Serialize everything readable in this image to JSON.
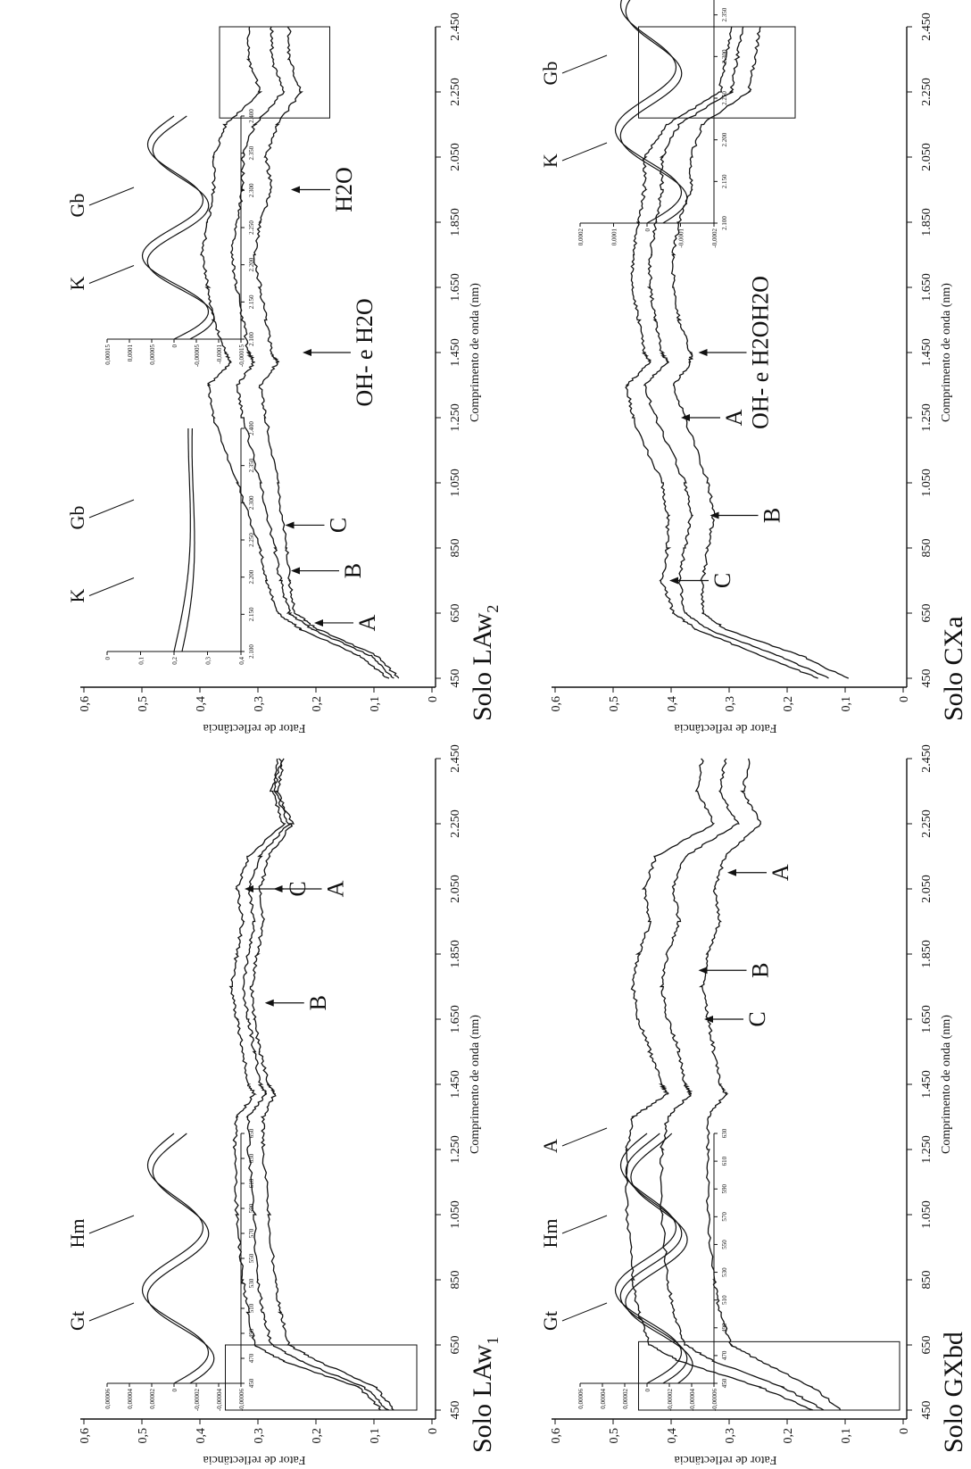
{
  "panels": [
    {
      "id": "law1",
      "title": "Solo LAw",
      "title_sub": "1",
      "ylabel": "Fator de reflectância",
      "xlabel": "Comprimento de onda (nm)",
      "x_ticks": [
        "450",
        "650",
        "850",
        "1.050",
        "1.250",
        "1.450",
        "1.650",
        "1.850",
        "2.050",
        "2.250",
        "2.450"
      ],
      "y_ticks": [
        "0",
        "0,1",
        "0,2",
        "0,3",
        "0,4",
        "0,5",
        "0,6"
      ],
      "box": {
        "x0": 450,
        "x1": 650,
        "y0": 0.02,
        "y1": 0.35
      },
      "annotations": [
        {
          "label": "C",
          "x": 2050,
          "y": 0.32
        },
        {
          "label": "A",
          "x": 2050,
          "y": 0.27
        },
        {
          "label": "B",
          "x": 1700,
          "y": 0.285
        }
      ],
      "inset": {
        "x_ticks": [
          "450",
          "470",
          "490",
          "510",
          "530",
          "550",
          "570",
          "590",
          "610",
          "630",
          "650"
        ],
        "y_ticks": [
          "0,00006",
          "0,00004",
          "0,00002",
          "0",
          "-0,00002",
          "-0,00004",
          "-0,00006"
        ],
        "ylim": [
          -6e-05,
          6e-05
        ],
        "labels": [
          "Gt",
          "Hm"
        ]
      }
    },
    {
      "id": "law2",
      "title": "Solo LAw",
      "title_sub": "2",
      "ylabel": "Fator de reflectância",
      "xlabel": "Comprimento de onda (nm)",
      "x_ticks": [
        "450",
        "650",
        "850",
        "1.050",
        "1.250",
        "1.450",
        "1.650",
        "1.850",
        "2.050",
        "2.250",
        "2.450"
      ],
      "y_ticks": [
        "0",
        "0,1",
        "0,2",
        "0,3",
        "0,4",
        "0,5",
        "0,6"
      ],
      "box": {
        "x0": 2170,
        "x1": 2450,
        "y0": 0.17,
        "y1": 0.36
      },
      "annotations": [
        {
          "label": "A",
          "x": 620,
          "y": 0.2
        },
        {
          "label": "B",
          "x": 780,
          "y": 0.24
        },
        {
          "label": "C",
          "x": 920,
          "y": 0.25
        },
        {
          "label": "OH- e H2O",
          "x": 1450,
          "y": 0.22
        },
        {
          "label": "H2O",
          "x": 1950,
          "y": 0.24
        }
      ],
      "inset1": {
        "x_ticks": [
          "2.100",
          "2.150",
          "2.200",
          "2.250",
          "2.300",
          "2.350",
          "2.400"
        ],
        "y_ticks": [
          "0",
          "0,1",
          "0,2",
          "0,3",
          "0,4"
        ],
        "labels": [
          "K",
          "Gb"
        ]
      },
      "inset2": {
        "x_ticks": [
          "2.100",
          "2.150",
          "2.200",
          "2.250",
          "2.300",
          "2.350",
          "2.400"
        ],
        "y_ticks": [
          "0,00015",
          "0,0001",
          "0,00005",
          "0",
          "-0,00005",
          "-0,0001",
          "-0,00015"
        ],
        "labels": [
          "K",
          "Gb"
        ]
      }
    },
    {
      "id": "gxbd",
      "title": "Solo GXbd",
      "ylabel": "Fator de reflectância",
      "xlabel": "Comprimento de onda (nm)",
      "x_ticks": [
        "450",
        "650",
        "850",
        "1.050",
        "1.250",
        "1.450",
        "1.650",
        "1.850",
        "2.050",
        "2.250",
        "2.450"
      ],
      "y_ticks": [
        "0",
        "0,1",
        "0,2",
        "0,3",
        "0,4",
        "0,5",
        "0,6"
      ],
      "box": {
        "x0": 450,
        "x1": 660,
        "y0": 0.0,
        "y1": 0.45
      },
      "annotations": [
        {
          "label": "C",
          "x": 1650,
          "y": 0.34
        },
        {
          "label": "B",
          "x": 1800,
          "y": 0.35
        },
        {
          "label": "A",
          "x": 2100,
          "y": 0.3
        }
      ],
      "inset": {
        "x_ticks": [
          "450",
          "470",
          "490",
          "510",
          "530",
          "550",
          "570",
          "590",
          "610",
          "630"
        ],
        "y_ticks": [
          "0,00006",
          "0,00004",
          "0,00002",
          "0",
          "-0,00002",
          "-0,00004",
          "-0,00006"
        ],
        "labels": [
          "Gt",
          "Hm",
          "A"
        ]
      }
    },
    {
      "id": "cxa",
      "title": "Solo CXa",
      "ylabel": "Fator de reflectância",
      "xlabel": "Comprimento de onda (nm)",
      "x_ticks": [
        "450",
        "650",
        "850",
        "1.050",
        "1.250",
        "1.450",
        "1.650",
        "1.850",
        "2.050",
        "2.250",
        "2.450"
      ],
      "y_ticks": [
        "0",
        "0,1",
        "0,2",
        "0,3",
        "0,4",
        "0,5",
        "0,6"
      ],
      "box": {
        "x0": 2170,
        "x1": 2450,
        "y0": 0.18,
        "y1": 0.45
      },
      "annotations": [
        {
          "label": "C",
          "x": 750,
          "y": 0.4
        },
        {
          "label": "B",
          "x": 950,
          "y": 0.33
        },
        {
          "label": "A",
          "x": 1250,
          "y": 0.38
        },
        {
          "label": "OH- e H2OH2O",
          "x": 1450,
          "y": 0.35
        }
      ],
      "inset": {
        "x_ticks": [
          "2.100",
          "2.150",
          "2.200",
          "2.250",
          "2.300",
          "2.350",
          "2.400"
        ],
        "y_ticks": [
          "0,0002",
          "0,0001",
          "0",
          "-0,0001",
          "-0,0002"
        ],
        "labels": [
          "K",
          "Gb"
        ]
      }
    }
  ],
  "chart_data": [
    {
      "type": "line",
      "title": "Solo LAw1",
      "xlabel": "Comprimento de onda (nm)",
      "ylabel": "Fator de reflectância",
      "xlim": [
        450,
        2450
      ],
      "ylim": [
        0,
        0.6
      ],
      "x": [
        450,
        520,
        600,
        650,
        750,
        850,
        1050,
        1250,
        1350,
        1420,
        1450,
        1550,
        1650,
        1750,
        1850,
        1950,
        2050,
        2150,
        2250,
        2350,
        2450
      ],
      "series": [
        {
          "values": [
            0.08,
            0.12,
            0.25,
            0.3,
            0.31,
            0.32,
            0.33,
            0.335,
            0.33,
            0.3,
            0.31,
            0.32,
            0.33,
            0.34,
            0.33,
            0.32,
            0.33,
            0.31,
            0.25,
            0.27,
            0.26
          ]
        },
        {
          "values": [
            0.07,
            0.11,
            0.22,
            0.27,
            0.285,
            0.295,
            0.3,
            0.31,
            0.31,
            0.28,
            0.29,
            0.3,
            0.31,
            0.32,
            0.31,
            0.3,
            0.31,
            0.29,
            0.24,
            0.265,
            0.255
          ]
        },
        {
          "values": [
            0.06,
            0.09,
            0.19,
            0.24,
            0.255,
            0.265,
            0.275,
            0.285,
            0.285,
            0.265,
            0.275,
            0.29,
            0.3,
            0.305,
            0.295,
            0.285,
            0.29,
            0.275,
            0.235,
            0.26,
            0.25
          ]
        }
      ]
    },
    {
      "type": "line",
      "title": "Solo LAw2",
      "xlabel": "Comprimento de onda (nm)",
      "ylabel": "Fator de reflectância",
      "xlim": [
        450,
        2450
      ],
      "ylim": [
        0,
        0.6
      ],
      "x": [
        450,
        520,
        600,
        650,
        750,
        850,
        1050,
        1250,
        1350,
        1420,
        1450,
        1550,
        1650,
        1750,
        1850,
        1950,
        2050,
        2150,
        2250,
        2350,
        2450
      ],
      "series": [
        {
          "values": [
            0.07,
            0.12,
            0.22,
            0.26,
            0.28,
            0.29,
            0.33,
            0.37,
            0.38,
            0.34,
            0.35,
            0.37,
            0.38,
            0.39,
            0.38,
            0.37,
            0.37,
            0.35,
            0.29,
            0.31,
            0.31
          ]
        },
        {
          "values": [
            0.06,
            0.1,
            0.2,
            0.24,
            0.255,
            0.265,
            0.29,
            0.32,
            0.33,
            0.3,
            0.31,
            0.32,
            0.33,
            0.34,
            0.33,
            0.32,
            0.32,
            0.3,
            0.25,
            0.27,
            0.27
          ]
        },
        {
          "values": [
            0.05,
            0.09,
            0.19,
            0.23,
            0.24,
            0.245,
            0.26,
            0.28,
            0.29,
            0.26,
            0.27,
            0.28,
            0.29,
            0.3,
            0.29,
            0.27,
            0.28,
            0.26,
            0.22,
            0.24,
            0.24
          ]
        }
      ]
    },
    {
      "type": "line",
      "title": "Solo GXbd",
      "xlabel": "Comprimento de onda (nm)",
      "ylabel": "Fator de reflectância",
      "xlim": [
        450,
        2450
      ],
      "ylim": [
        0,
        0.6
      ],
      "x": [
        450,
        520,
        600,
        650,
        750,
        850,
        1050,
        1250,
        1350,
        1420,
        1450,
        1550,
        1650,
        1750,
        1850,
        1950,
        2050,
        2150,
        2250,
        2350,
        2450
      ],
      "series": [
        {
          "values": [
            0.15,
            0.24,
            0.38,
            0.43,
            0.45,
            0.46,
            0.47,
            0.47,
            0.46,
            0.4,
            0.41,
            0.43,
            0.45,
            0.46,
            0.45,
            0.43,
            0.44,
            0.42,
            0.32,
            0.35,
            0.34
          ]
        },
        {
          "values": [
            0.13,
            0.2,
            0.32,
            0.37,
            0.39,
            0.4,
            0.41,
            0.41,
            0.4,
            0.36,
            0.37,
            0.38,
            0.4,
            0.41,
            0.4,
            0.38,
            0.39,
            0.37,
            0.28,
            0.31,
            0.3
          ]
        },
        {
          "values": [
            0.1,
            0.15,
            0.24,
            0.29,
            0.31,
            0.32,
            0.33,
            0.33,
            0.33,
            0.3,
            0.31,
            0.32,
            0.33,
            0.34,
            0.33,
            0.31,
            0.32,
            0.3,
            0.24,
            0.27,
            0.26
          ]
        }
      ]
    },
    {
      "type": "line",
      "title": "Solo CXa",
      "xlabel": "Comprimento de onda (nm)",
      "ylabel": "Fator de reflectância",
      "xlim": [
        450,
        2450
      ],
      "ylim": [
        0,
        0.6
      ],
      "x": [
        450,
        520,
        600,
        650,
        750,
        850,
        950,
        1050,
        1250,
        1350,
        1420,
        1450,
        1550,
        1650,
        1750,
        1850,
        1950,
        2050,
        2150,
        2250,
        2350,
        2450
      ],
      "series": [
        {
          "values": [
            0.14,
            0.24,
            0.35,
            0.39,
            0.41,
            0.4,
            0.4,
            0.41,
            0.46,
            0.47,
            0.43,
            0.44,
            0.45,
            0.46,
            0.46,
            0.45,
            0.44,
            0.44,
            0.4,
            0.31,
            0.3,
            0.29
          ]
        },
        {
          "values": [
            0.12,
            0.21,
            0.33,
            0.37,
            0.38,
            0.37,
            0.36,
            0.37,
            0.42,
            0.44,
            0.4,
            0.41,
            0.42,
            0.43,
            0.43,
            0.42,
            0.41,
            0.41,
            0.38,
            0.29,
            0.28,
            0.27
          ]
        },
        {
          "values": [
            0.09,
            0.17,
            0.3,
            0.34,
            0.34,
            0.33,
            0.32,
            0.33,
            0.37,
            0.39,
            0.36,
            0.36,
            0.38,
            0.39,
            0.39,
            0.38,
            0.36,
            0.36,
            0.34,
            0.26,
            0.25,
            0.24
          ]
        }
      ]
    }
  ]
}
